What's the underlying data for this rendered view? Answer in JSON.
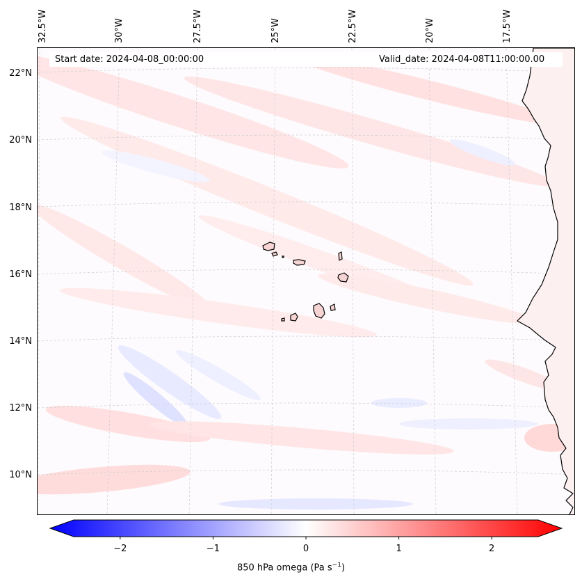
{
  "map": {
    "start_date": "Start date: 2024-04-08_00:00:00",
    "valid_date": "Valid_date: 2024-04-08T11:00:00.00",
    "lon_labels": [
      "32.5°W",
      "30°W",
      "27.5°W",
      "25°W",
      "22.5°W",
      "20°W",
      "17.5°W"
    ],
    "lat_labels": [
      "22°N",
      "20°N",
      "18°N",
      "16°N",
      "14°N",
      "12°N",
      "10°N"
    ],
    "field": "850 hPa omega",
    "colors": {
      "neg": "#0000ff",
      "zero": "#ffffff",
      "pos": "#ff0000",
      "coast": "#000000"
    }
  },
  "colorbar": {
    "ticks": [
      "−2",
      "−1",
      "0",
      "1",
      "2"
    ],
    "tick_values": [
      -2,
      -1,
      0,
      1,
      2
    ],
    "range": [
      -2.5,
      2.5
    ],
    "label_main": "850 hPa omega (Pa s",
    "label_sup": "−1",
    "label_end": ")"
  }
}
